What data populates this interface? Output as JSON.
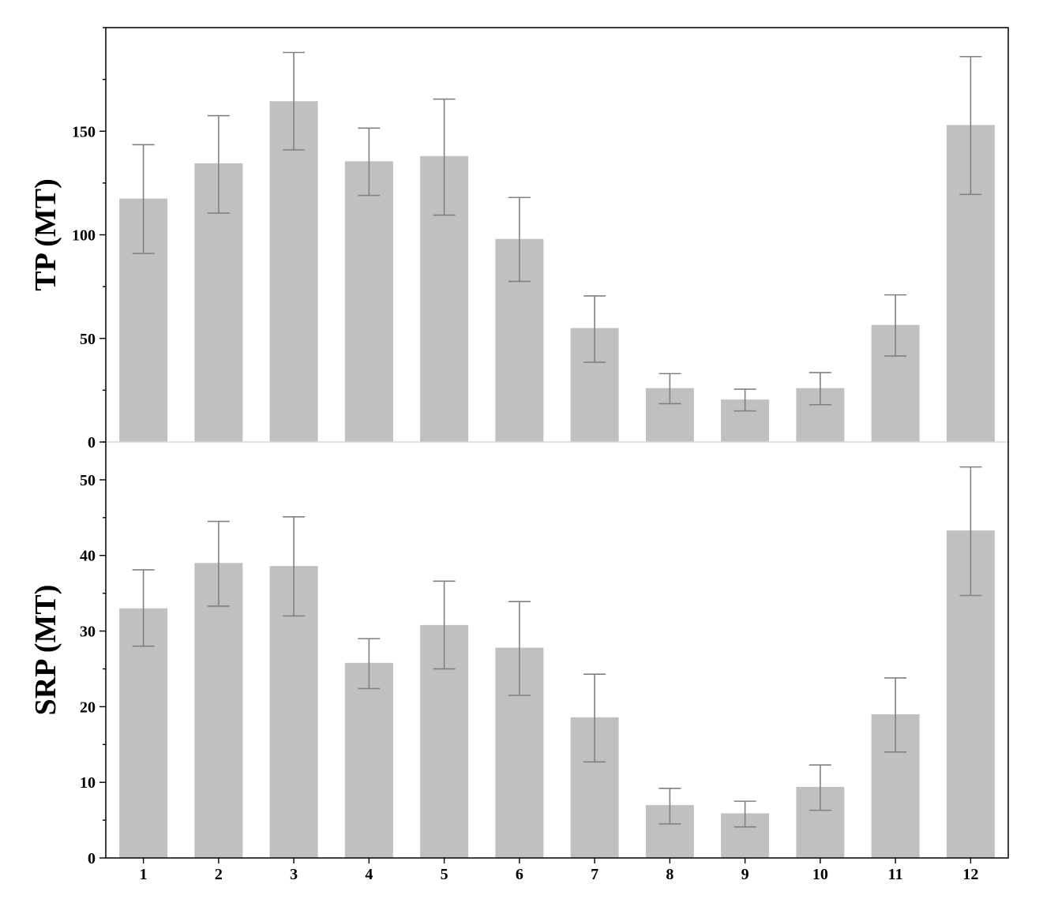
{
  "chart_data": [
    {
      "type": "bar",
      "ylabel": "TP (MT)",
      "xlabel": "",
      "categories": [
        "1",
        "2",
        "3",
        "4",
        "5",
        "6",
        "7",
        "8",
        "9",
        "10",
        "11",
        "12"
      ],
      "values": [
        117.5,
        134.5,
        164.5,
        135.5,
        138,
        98,
        55,
        26,
        20.5,
        26,
        56.5,
        153
      ],
      "error_low": [
        91,
        110.5,
        141,
        119,
        109.5,
        77.5,
        38.5,
        18.5,
        15,
        18,
        41.5,
        119.5
      ],
      "error_high": [
        143.5,
        157.5,
        188,
        151.5,
        165.5,
        118,
        70.5,
        33,
        25.5,
        33.5,
        71,
        186
      ],
      "ylim": [
        0,
        200
      ],
      "yticks": [
        0,
        50,
        100,
        150
      ],
      "grid": false,
      "bar_color": "#c0c0c0",
      "error_color": "#808080"
    },
    {
      "type": "bar",
      "ylabel": "SRP (MT)",
      "xlabel": "",
      "categories": [
        "1",
        "2",
        "3",
        "4",
        "5",
        "6",
        "7",
        "8",
        "9",
        "10",
        "11",
        "12"
      ],
      "values": [
        33,
        39,
        38.6,
        25.8,
        30.8,
        27.8,
        18.6,
        7,
        5.9,
        9.4,
        19,
        43.3
      ],
      "error_low": [
        28,
        33.3,
        32,
        22.4,
        25,
        21.5,
        12.7,
        4.5,
        4.1,
        6.3,
        14,
        34.7
      ],
      "error_high": [
        38.1,
        44.5,
        45.1,
        29,
        36.6,
        33.9,
        24.3,
        9.2,
        7.5,
        12.3,
        23.8,
        51.7
      ],
      "ylim": [
        0,
        55
      ],
      "yticks": [
        0,
        10,
        20,
        30,
        40,
        50
      ],
      "grid": false,
      "bar_color": "#c0c0c0",
      "error_color": "#808080"
    }
  ]
}
